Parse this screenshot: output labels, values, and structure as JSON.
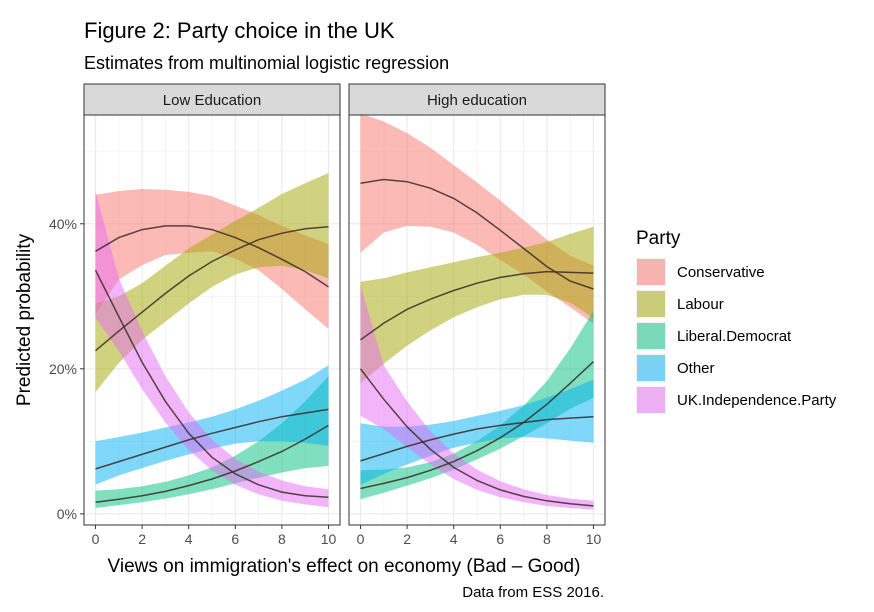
{
  "chart_data": {
    "type": "line",
    "title": "Figure 2: Party choice in the UK",
    "subtitle": "Estimates from multinomial logistic regression",
    "xlabel": "Views on immigration's effect on economy (Bad – Good)",
    "ylabel": "Predicted probability",
    "caption": "Data from ESS 2016.",
    "xlim": [
      0,
      10
    ],
    "ylim": [
      0,
      0.55
    ],
    "x_ticks": [
      0,
      2,
      4,
      6,
      8,
      10
    ],
    "x_tick_labels": [
      "0",
      "2",
      "4",
      "6",
      "8",
      "10"
    ],
    "y_ticks": [
      0,
      0.2,
      0.4
    ],
    "y_tick_labels": [
      "0%",
      "20%",
      "40%"
    ],
    "grid": true,
    "legend": {
      "title": "Party",
      "placement": "right",
      "entries": [
        {
          "key": "con",
          "label": "Conservative",
          "color": "#F8766D"
        },
        {
          "key": "lab",
          "label": "Labour",
          "color": "#A3A500"
        },
        {
          "key": "lib",
          "label": "Liberal.Democrat",
          "color": "#00BF7D"
        },
        {
          "key": "oth",
          "label": "Other",
          "color": "#00B0F6"
        },
        {
          "key": "ukip",
          "label": "UK.Independence.Party",
          "color": "#E76BF3"
        }
      ]
    },
    "x": [
      0,
      1,
      2,
      3,
      4,
      5,
      6,
      7,
      8,
      9,
      10
    ],
    "panels": [
      {
        "label": "Low Education",
        "series": [
          {
            "key": "con",
            "mean": [
              0.362,
              0.381,
              0.392,
              0.397,
              0.397,
              0.392,
              0.381,
              0.367,
              0.351,
              0.334,
              0.313
            ],
            "lower": [
              0.275,
              0.323,
              0.343,
              0.357,
              0.36,
              0.362,
              0.352,
              0.336,
              0.31,
              0.282,
              0.255
            ],
            "upper": [
              0.44,
              0.445,
              0.448,
              0.447,
              0.444,
              0.438,
              0.425,
              0.412,
              0.397,
              0.384,
              0.372
            ]
          },
          {
            "key": "lab",
            "mean": [
              0.225,
              0.252,
              0.278,
              0.304,
              0.328,
              0.348,
              0.364,
              0.378,
              0.387,
              0.393,
              0.396
            ],
            "lower": [
              0.168,
              0.208,
              0.24,
              0.265,
              0.29,
              0.313,
              0.33,
              0.34,
              0.342,
              0.336,
              0.325
            ],
            "upper": [
              0.29,
              0.3,
              0.318,
              0.342,
              0.366,
              0.385,
              0.404,
              0.422,
              0.441,
              0.456,
              0.47
            ]
          },
          {
            "key": "lib",
            "mean": [
              0.016,
              0.02,
              0.025,
              0.031,
              0.039,
              0.048,
              0.059,
              0.072,
              0.086,
              0.103,
              0.122
            ],
            "lower": [
              0.008,
              0.012,
              0.016,
              0.021,
              0.027,
              0.034,
              0.042,
              0.05,
              0.057,
              0.063,
              0.066
            ],
            "upper": [
              0.032,
              0.034,
              0.038,
              0.044,
              0.053,
              0.064,
              0.08,
              0.1,
              0.125,
              0.155,
              0.19
            ]
          },
          {
            "key": "oth",
            "mean": [
              0.062,
              0.072,
              0.082,
              0.092,
              0.102,
              0.111,
              0.119,
              0.127,
              0.134,
              0.139,
              0.144
            ],
            "lower": [
              0.04,
              0.053,
              0.063,
              0.073,
              0.082,
              0.09,
              0.097,
              0.1,
              0.1,
              0.098,
              0.094
            ],
            "upper": [
              0.1,
              0.106,
              0.112,
              0.119,
              0.126,
              0.134,
              0.144,
              0.156,
              0.17,
              0.185,
              0.205
            ]
          },
          {
            "key": "ukip",
            "mean": [
              0.336,
              0.272,
              0.209,
              0.155,
              0.111,
              0.078,
              0.055,
              0.04,
              0.03,
              0.025,
              0.023
            ],
            "lower": [
              0.27,
              0.225,
              0.172,
              0.126,
              0.088,
              0.06,
              0.04,
              0.027,
              0.018,
              0.013,
              0.009
            ],
            "upper": [
              0.445,
              0.325,
              0.252,
              0.19,
              0.14,
              0.102,
              0.076,
              0.058,
              0.046,
              0.038,
              0.034
            ]
          }
        ]
      },
      {
        "label": "High education",
        "series": [
          {
            "key": "con",
            "mean": [
              0.456,
              0.461,
              0.458,
              0.449,
              0.435,
              0.415,
              0.391,
              0.366,
              0.341,
              0.321,
              0.31
            ],
            "lower": [
              0.36,
              0.388,
              0.397,
              0.396,
              0.388,
              0.371,
              0.35,
              0.33,
              0.307,
              0.285,
              0.262
            ],
            "upper": [
              0.552,
              0.541,
              0.525,
              0.505,
              0.481,
              0.457,
              0.432,
              0.405,
              0.378,
              0.356,
              0.342
            ]
          },
          {
            "key": "lab",
            "mean": [
              0.24,
              0.263,
              0.282,
              0.296,
              0.308,
              0.318,
              0.326,
              0.331,
              0.334,
              0.333,
              0.332
            ],
            "lower": [
              0.18,
              0.207,
              0.232,
              0.253,
              0.271,
              0.285,
              0.296,
              0.302,
              0.302,
              0.291,
              0.27
            ],
            "upper": [
              0.32,
              0.325,
              0.333,
              0.34,
              0.347,
              0.354,
              0.36,
              0.367,
              0.375,
              0.386,
              0.396
            ]
          },
          {
            "key": "lib",
            "mean": [
              0.035,
              0.042,
              0.05,
              0.06,
              0.072,
              0.087,
              0.105,
              0.126,
              0.151,
              0.18,
              0.21
            ],
            "lower": [
              0.02,
              0.029,
              0.039,
              0.049,
              0.061,
              0.075,
              0.09,
              0.107,
              0.125,
              0.145,
              0.16
            ],
            "upper": [
              0.06,
              0.061,
              0.064,
              0.071,
              0.083,
              0.1,
              0.122,
              0.149,
              0.183,
              0.228,
              0.28
            ]
          },
          {
            "key": "oth",
            "mean": [
              0.073,
              0.083,
              0.093,
              0.102,
              0.11,
              0.117,
              0.122,
              0.126,
              0.13,
              0.132,
              0.134
            ],
            "lower": [
              0.04,
              0.055,
              0.068,
              0.08,
              0.091,
              0.098,
              0.104,
              0.106,
              0.104,
              0.101,
              0.098
            ],
            "upper": [
              0.125,
              0.12,
              0.12,
              0.123,
              0.128,
              0.135,
              0.142,
              0.15,
              0.16,
              0.172,
              0.185
            ]
          },
          {
            "key": "ukip",
            "mean": [
              0.2,
              0.158,
              0.12,
              0.089,
              0.064,
              0.046,
              0.033,
              0.024,
              0.018,
              0.014,
              0.011
            ],
            "lower": [
              0.135,
              0.117,
              0.092,
              0.068,
              0.048,
              0.033,
              0.023,
              0.016,
              0.011,
              0.008,
              0.006
            ],
            "upper": [
              0.315,
              0.205,
              0.155,
              0.114,
              0.083,
              0.061,
              0.045,
              0.034,
              0.026,
              0.021,
              0.018
            ]
          }
        ]
      }
    ]
  }
}
